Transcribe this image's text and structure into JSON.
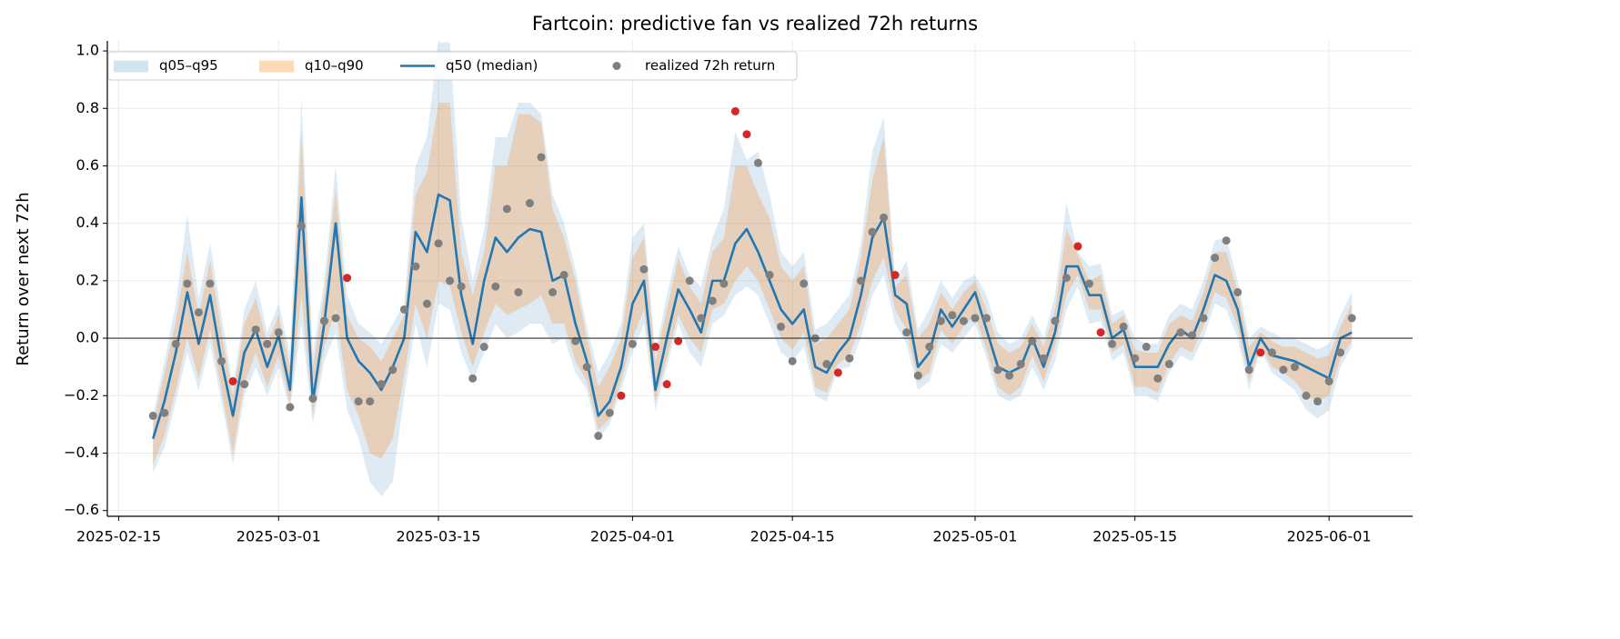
{
  "chart_data": {
    "type": "fan",
    "title": "Fartcoin: predictive fan vs realized 72h returns",
    "y_label": "Return over next 72h",
    "x": [
      "2025-02-18",
      "2025-02-19",
      "2025-02-20",
      "2025-02-21",
      "2025-02-22",
      "2025-02-23",
      "2025-02-24",
      "2025-02-25",
      "2025-02-26",
      "2025-02-27",
      "2025-02-28",
      "2025-03-01",
      "2025-03-02",
      "2025-03-03",
      "2025-03-04",
      "2025-03-05",
      "2025-03-06",
      "2025-03-07",
      "2025-03-08",
      "2025-03-09",
      "2025-03-10",
      "2025-03-11",
      "2025-03-12",
      "2025-03-13",
      "2025-03-14",
      "2025-03-15",
      "2025-03-16",
      "2025-03-17",
      "2025-03-18",
      "2025-03-19",
      "2025-03-20",
      "2025-03-21",
      "2025-03-22",
      "2025-03-23",
      "2025-03-24",
      "2025-03-25",
      "2025-03-26",
      "2025-03-27",
      "2025-03-28",
      "2025-03-29",
      "2025-03-30",
      "2025-03-31",
      "2025-04-01",
      "2025-04-02",
      "2025-04-03",
      "2025-04-04",
      "2025-04-05",
      "2025-04-06",
      "2025-04-07",
      "2025-04-08",
      "2025-04-09",
      "2025-04-10",
      "2025-04-11",
      "2025-04-12",
      "2025-04-13",
      "2025-04-14",
      "2025-04-15",
      "2025-04-16",
      "2025-04-17",
      "2025-04-18",
      "2025-04-19",
      "2025-04-20",
      "2025-04-21",
      "2025-04-22",
      "2025-04-23",
      "2025-04-24",
      "2025-04-25",
      "2025-04-26",
      "2025-04-27",
      "2025-04-28",
      "2025-04-29",
      "2025-04-30",
      "2025-05-01",
      "2025-05-02",
      "2025-05-03",
      "2025-05-04",
      "2025-05-05",
      "2025-05-06",
      "2025-05-07",
      "2025-05-08",
      "2025-05-09",
      "2025-05-10",
      "2025-05-11",
      "2025-05-12",
      "2025-05-13",
      "2025-05-14",
      "2025-05-15",
      "2025-05-16",
      "2025-05-17",
      "2025-05-18",
      "2025-05-19",
      "2025-05-20",
      "2025-05-21",
      "2025-05-22",
      "2025-05-23",
      "2025-05-24",
      "2025-05-25",
      "2025-05-26",
      "2025-05-27",
      "2025-05-28",
      "2025-05-29",
      "2025-05-30",
      "2025-05-31",
      "2025-06-01",
      "2025-06-02",
      "2025-06-03"
    ],
    "series": [
      {
        "type": "band",
        "name": "q05–q95",
        "color": "#1f77b4",
        "alpha": 0.15,
        "lower": [
          -0.47,
          -0.38,
          -0.22,
          -0.05,
          -0.18,
          -0.02,
          -0.22,
          -0.44,
          -0.2,
          -0.1,
          -0.2,
          -0.1,
          -0.25,
          0.05,
          -0.3,
          -0.08,
          0.02,
          -0.25,
          -0.35,
          -0.5,
          -0.55,
          -0.5,
          -0.2,
          0.05,
          -0.1,
          0.12,
          0.1,
          -0.05,
          -0.15,
          -0.05,
          0.05,
          0.0,
          0.02,
          0.05,
          0.05,
          -0.02,
          0.0,
          -0.12,
          -0.18,
          -0.35,
          -0.3,
          -0.18,
          -0.05,
          0.05,
          -0.25,
          -0.1,
          0.05,
          -0.05,
          -0.1,
          0.05,
          0.08,
          0.15,
          0.18,
          0.15,
          0.05,
          -0.05,
          -0.08,
          -0.03,
          -0.2,
          -0.22,
          -0.11,
          -0.1,
          0.0,
          0.15,
          0.22,
          0.05,
          -0.02,
          -0.18,
          -0.15,
          -0.02,
          -0.05,
          0.0,
          0.05,
          -0.07,
          -0.2,
          -0.22,
          -0.2,
          -0.1,
          -0.18,
          -0.08,
          0.1,
          0.18,
          0.05,
          0.06,
          -0.08,
          -0.05,
          -0.2,
          -0.2,
          -0.22,
          -0.12,
          -0.06,
          -0.08,
          0.0,
          0.12,
          0.1,
          0.0,
          -0.18,
          -0.04,
          -0.12,
          -0.15,
          -0.18,
          -0.25,
          -0.28,
          -0.25,
          -0.1,
          -0.03
        ],
        "upper": [
          -0.27,
          -0.08,
          0.12,
          0.43,
          0.14,
          0.33,
          0.08,
          -0.17,
          0.1,
          0.2,
          0.02,
          0.12,
          -0.05,
          0.83,
          -0.05,
          0.2,
          0.6,
          0.15,
          0.05,
          0.02,
          -0.02,
          0.05,
          0.12,
          0.6,
          0.7,
          1.03,
          1.03,
          0.42,
          0.2,
          0.38,
          0.7,
          0.7,
          0.82,
          0.82,
          0.78,
          0.5,
          0.4,
          0.24,
          0.04,
          -0.12,
          -0.05,
          0.05,
          0.35,
          0.4,
          -0.05,
          0.15,
          0.32,
          0.22,
          0.18,
          0.35,
          0.45,
          0.72,
          0.62,
          0.65,
          0.5,
          0.3,
          0.25,
          0.3,
          0.03,
          0.05,
          0.1,
          0.15,
          0.33,
          0.65,
          0.77,
          0.2,
          0.27,
          0.03,
          0.1,
          0.2,
          0.14,
          0.2,
          0.22,
          0.15,
          0.02,
          -0.02,
          0.0,
          0.08,
          0.0,
          0.15,
          0.47,
          0.3,
          0.25,
          0.26,
          0.08,
          0.1,
          0.0,
          -0.02,
          -0.02,
          0.08,
          0.12,
          0.1,
          0.2,
          0.34,
          0.35,
          0.2,
          0.0,
          0.04,
          0.02,
          0.0,
          0.0,
          -0.02,
          -0.04,
          -0.02,
          0.08,
          0.16
        ]
      },
      {
        "type": "band",
        "name": "q10–q90",
        "color": "#ff7f0e",
        "alpha": 0.25,
        "lower": [
          -0.44,
          -0.34,
          -0.18,
          0.0,
          -0.14,
          0.03,
          -0.18,
          -0.4,
          -0.16,
          -0.05,
          -0.17,
          -0.06,
          -0.23,
          0.15,
          -0.27,
          -0.03,
          0.1,
          -0.18,
          -0.27,
          -0.4,
          -0.42,
          -0.35,
          -0.13,
          0.12,
          0.0,
          0.2,
          0.18,
          0.02,
          -0.1,
          0.02,
          0.12,
          0.08,
          0.1,
          0.12,
          0.15,
          0.05,
          0.05,
          -0.08,
          -0.15,
          -0.32,
          -0.28,
          -0.15,
          0.0,
          0.1,
          -0.22,
          -0.07,
          0.08,
          0.0,
          -0.05,
          0.1,
          0.12,
          0.2,
          0.25,
          0.2,
          0.1,
          0.0,
          -0.04,
          0.02,
          -0.17,
          -0.19,
          -0.09,
          -0.06,
          0.05,
          0.2,
          0.28,
          0.1,
          0.03,
          -0.15,
          -0.12,
          0.03,
          -0.02,
          0.04,
          0.08,
          -0.04,
          -0.17,
          -0.2,
          -0.17,
          -0.06,
          -0.15,
          -0.03,
          0.15,
          0.22,
          0.1,
          0.1,
          -0.05,
          -0.02,
          -0.17,
          -0.17,
          -0.19,
          -0.09,
          -0.03,
          -0.05,
          0.04,
          0.16,
          0.14,
          0.04,
          -0.15,
          -0.03,
          -0.1,
          -0.12,
          -0.15,
          -0.2,
          -0.22,
          -0.2,
          -0.07,
          -0.01
        ],
        "upper": [
          -0.3,
          -0.12,
          0.06,
          0.3,
          0.08,
          0.27,
          0.02,
          -0.2,
          0.05,
          0.14,
          -0.02,
          0.08,
          -0.1,
          0.72,
          -0.1,
          0.15,
          0.52,
          0.08,
          0.0,
          -0.03,
          -0.08,
          0.0,
          0.08,
          0.5,
          0.58,
          0.82,
          0.82,
          0.3,
          0.15,
          0.3,
          0.6,
          0.6,
          0.78,
          0.78,
          0.75,
          0.45,
          0.35,
          0.2,
          0.0,
          -0.17,
          -0.1,
          0.0,
          0.28,
          0.35,
          -0.08,
          0.1,
          0.28,
          0.18,
          0.12,
          0.3,
          0.35,
          0.6,
          0.6,
          0.5,
          0.42,
          0.25,
          0.2,
          0.25,
          -0.02,
          0.0,
          0.05,
          0.1,
          0.28,
          0.55,
          0.7,
          0.18,
          0.22,
          0.0,
          0.05,
          0.16,
          0.1,
          0.16,
          0.2,
          0.1,
          -0.02,
          -0.05,
          -0.03,
          0.05,
          -0.03,
          0.1,
          0.38,
          0.29,
          0.2,
          0.22,
          0.05,
          0.08,
          -0.04,
          -0.05,
          -0.05,
          0.05,
          0.08,
          0.06,
          0.16,
          0.3,
          0.3,
          0.16,
          -0.03,
          0.02,
          -0.01,
          -0.03,
          -0.03,
          -0.05,
          -0.07,
          -0.06,
          0.04,
          0.12
        ]
      },
      {
        "type": "line",
        "name": "q50 (median)",
        "color": "#1f77b4",
        "values": [
          -0.35,
          -0.22,
          -0.05,
          0.16,
          -0.02,
          0.15,
          -0.08,
          -0.27,
          -0.05,
          0.03,
          -0.1,
          0.01,
          -0.18,
          0.49,
          -0.22,
          0.05,
          0.4,
          0.0,
          -0.08,
          -0.12,
          -0.18,
          -0.1,
          0.0,
          0.37,
          0.3,
          0.5,
          0.48,
          0.15,
          -0.02,
          0.2,
          0.35,
          0.3,
          0.35,
          0.38,
          0.37,
          0.2,
          0.22,
          0.05,
          -0.08,
          -0.27,
          -0.22,
          -0.1,
          0.12,
          0.2,
          -0.18,
          0.0,
          0.17,
          0.1,
          0.02,
          0.2,
          0.2,
          0.33,
          0.38,
          0.3,
          0.2,
          0.1,
          0.05,
          0.1,
          -0.1,
          -0.12,
          -0.05,
          0.0,
          0.15,
          0.35,
          0.42,
          0.15,
          0.12,
          -0.1,
          -0.05,
          0.1,
          0.04,
          0.1,
          0.16,
          0.03,
          -0.1,
          -0.12,
          -0.1,
          0.0,
          -0.1,
          0.02,
          0.25,
          0.25,
          0.15,
          0.15,
          0.0,
          0.03,
          -0.1,
          -0.1,
          -0.1,
          -0.02,
          0.03,
          0.0,
          0.1,
          0.22,
          0.2,
          0.1,
          -0.1,
          0.0,
          -0.06,
          -0.07,
          -0.08,
          -0.1,
          -0.12,
          -0.14,
          0.0,
          0.02
        ]
      },
      {
        "type": "scatter",
        "name": "realized 72h return",
        "color": "#7f7f7f",
        "outside_color": "#d62728",
        "values": [
          -0.27,
          -0.26,
          -0.02,
          0.19,
          0.09,
          0.19,
          -0.08,
          -0.15,
          -0.16,
          0.03,
          -0.02,
          0.02,
          -0.24,
          0.39,
          -0.21,
          0.06,
          0.07,
          0.21,
          -0.22,
          -0.22,
          -0.16,
          -0.11,
          0.1,
          0.25,
          0.12,
          0.33,
          0.2,
          0.18,
          -0.14,
          -0.03,
          0.18,
          0.45,
          0.16,
          0.47,
          0.63,
          0.16,
          0.22,
          -0.01,
          -0.1,
          -0.34,
          -0.26,
          -0.2,
          -0.02,
          0.24,
          -0.03,
          -0.16,
          -0.01,
          0.2,
          0.07,
          0.13,
          0.19,
          0.79,
          0.71,
          0.61,
          0.22,
          0.04,
          -0.08,
          0.19,
          0.0,
          -0.09,
          -0.12,
          -0.07,
          0.2,
          0.37,
          0.42,
          0.22,
          0.02,
          -0.13,
          -0.03,
          0.06,
          0.08,
          0.06,
          0.07,
          0.07,
          -0.11,
          -0.13,
          -0.09,
          -0.01,
          -0.07,
          0.06,
          0.21,
          0.32,
          0.19,
          0.02,
          -0.02,
          0.04,
          -0.07,
          -0.03,
          -0.14,
          -0.09,
          0.02,
          0.01,
          0.07,
          0.28,
          0.34,
          0.16,
          -0.11,
          -0.05,
          -0.05,
          -0.11,
          -0.1,
          -0.2,
          -0.22,
          -0.15,
          -0.05,
          0.07
        ]
      }
    ],
    "xlim": [
      "2025-02-14",
      "2025-06-08"
    ],
    "xticks": [
      "2025-02-15",
      "2025-03-01",
      "2025-03-15",
      "2025-04-01",
      "2025-04-15",
      "2025-05-01",
      "2025-05-15",
      "2025-06-01"
    ],
    "ylim": [
      -0.62,
      1.035
    ],
    "yticks": [
      {
        "value": -0.6,
        "label": "−0.6"
      },
      {
        "value": -0.4,
        "label": "−0.4"
      },
      {
        "value": -0.2,
        "label": "−0.2"
      },
      {
        "value": 0,
        "label": "0.0"
      },
      0.2,
      0.4,
      0.6,
      0.8,
      {
        "value": 1,
        "label": "1.0"
      }
    ],
    "reference_line": 0,
    "grid": true,
    "legend": "upper left"
  }
}
